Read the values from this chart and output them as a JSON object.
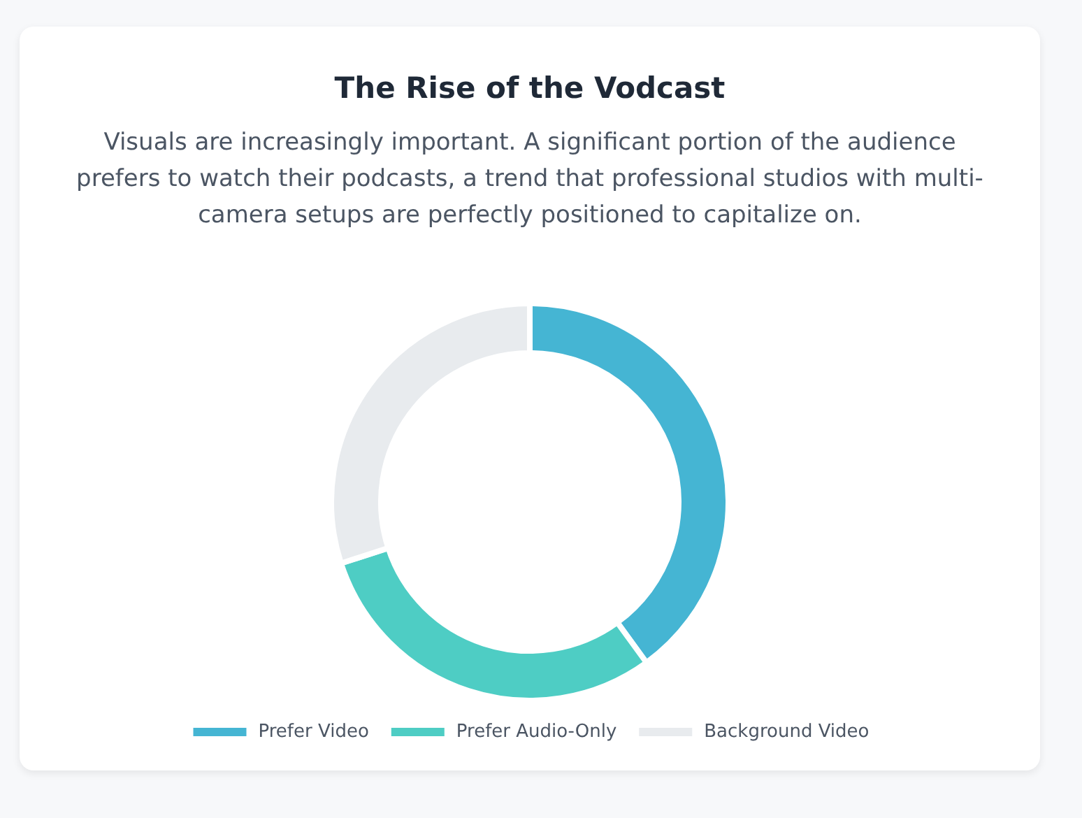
{
  "chart_data": {
    "type": "donut",
    "title": "The Rise of the Vodcast",
    "subtitle": "Visuals are increasingly important. A significant portion of the audience prefers to watch their podcasts, a trend that professional studios with multi-camera setups are perfectly positioned to capitalize on.",
    "categories": [
      "Prefer Video",
      "Prefer Audio-Only",
      "Background Video"
    ],
    "values": [
      40,
      30,
      30
    ],
    "colors": [
      "#45b5d3",
      "#4ecdc4",
      "#e8ebee"
    ],
    "legend": "bottom"
  }
}
